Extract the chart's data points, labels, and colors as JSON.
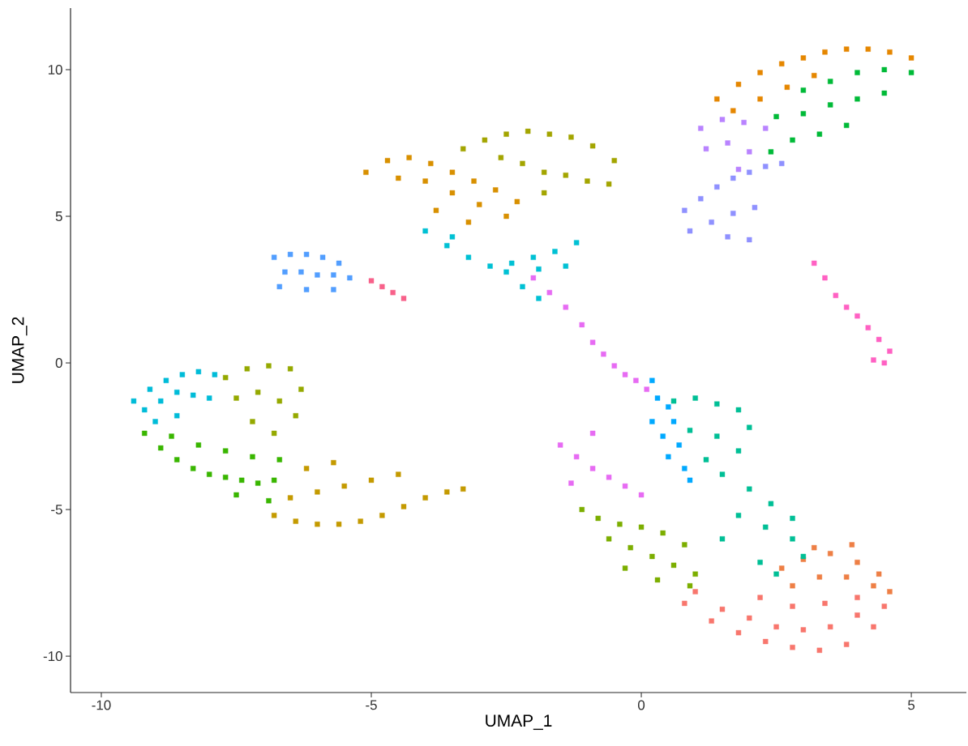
{
  "chart_data": {
    "type": "scatter",
    "xlabel": "UMAP_1",
    "ylabel": "UMAP_2",
    "xlim": [
      -10.57,
      6.02
    ],
    "ylim": [
      -11.24,
      12.1
    ],
    "xticks": [
      -10,
      -5,
      0,
      5
    ],
    "yticks": [
      -10,
      -5,
      0,
      5,
      10
    ],
    "grid": false,
    "marker": "square",
    "series": [
      {
        "color": "#f8766d",
        "x": [
          0.8,
          1.3,
          1.8,
          2.3,
          2.8,
          3.3,
          3.8,
          4.3,
          1.5,
          2.0,
          2.5,
          3.0,
          3.5,
          4.0,
          2.2,
          2.8,
          3.4,
          4.0,
          1.0,
          4.5
        ],
        "values": [
          -8.2,
          -8.8,
          -9.2,
          -9.5,
          -9.7,
          -9.8,
          -9.6,
          -9.0,
          -8.4,
          -8.7,
          -9.0,
          -9.1,
          -9.0,
          -8.6,
          -8.0,
          -8.3,
          -8.2,
          -8.0,
          -7.8,
          -8.3
        ]
      },
      {
        "color": "#ee7f45",
        "x": [
          2.6,
          3.0,
          3.5,
          4.0,
          4.4,
          4.6,
          2.8,
          3.3,
          3.8,
          4.3,
          3.2,
          3.9
        ],
        "values": [
          -7.0,
          -6.7,
          -6.5,
          -6.8,
          -7.2,
          -7.8,
          -7.6,
          -7.3,
          -7.3,
          -7.6,
          -6.3,
          -6.2
        ]
      },
      {
        "color": "#00bf96",
        "x": [
          0.6,
          1.0,
          1.4,
          1.8,
          2.0,
          0.9,
          1.4,
          1.8,
          1.5,
          2.0,
          2.4,
          2.8,
          1.8,
          2.3,
          2.8,
          1.2,
          2.2,
          3.0,
          1.5,
          2.5
        ],
        "values": [
          -1.3,
          -1.2,
          -1.4,
          -1.6,
          -2.2,
          -2.3,
          -2.5,
          -3.0,
          -3.8,
          -4.3,
          -4.8,
          -5.3,
          -5.2,
          -5.6,
          -6.0,
          -3.3,
          -6.8,
          -6.6,
          -6.0,
          -7.2
        ]
      },
      {
        "color": "#00a9ff",
        "x": [
          0.2,
          0.3,
          0.5,
          0.6,
          0.4,
          0.7,
          0.5,
          0.8,
          0.2,
          0.9
        ],
        "values": [
          -0.6,
          -1.2,
          -1.5,
          -2.0,
          -2.5,
          -2.8,
          -3.2,
          -3.6,
          -2.0,
          -4.0
        ]
      },
      {
        "color": "#e76bf3",
        "x": [
          -2.0,
          -1.7,
          -1.4,
          -1.1,
          -0.9,
          -0.7,
          -0.5,
          -0.3,
          -0.1,
          0.1,
          -1.5,
          -1.2,
          -0.9,
          -0.6,
          -0.3,
          0.0,
          -1.3,
          -0.9
        ],
        "values": [
          2.9,
          2.4,
          1.9,
          1.3,
          0.7,
          0.3,
          -0.1,
          -0.4,
          -0.6,
          -0.9,
          -2.8,
          -3.2,
          -3.6,
          -3.9,
          -4.2,
          -4.5,
          -4.1,
          -2.4
        ]
      },
      {
        "color": "#7cae00",
        "x": [
          -1.1,
          -0.8,
          -0.4,
          0.0,
          0.4,
          0.8,
          -0.6,
          -0.2,
          0.2,
          0.6,
          1.0,
          -0.3,
          0.3,
          0.9
        ],
        "values": [
          -5.0,
          -5.3,
          -5.5,
          -5.6,
          -5.8,
          -6.2,
          -6.0,
          -6.3,
          -6.6,
          -6.9,
          -7.2,
          -7.0,
          -7.4,
          -7.6
        ]
      },
      {
        "color": "#00c1d4",
        "x": [
          -4.0,
          -3.6,
          -3.2,
          -2.8,
          -2.4,
          -2.0,
          -1.6,
          -1.2,
          -3.5,
          -2.5,
          -1.9,
          -1.4,
          -2.2,
          -1.9
        ],
        "values": [
          4.5,
          4.0,
          3.6,
          3.3,
          3.4,
          3.6,
          3.8,
          4.1,
          4.3,
          3.1,
          3.2,
          3.3,
          2.6,
          2.2
        ]
      },
      {
        "color": "#d89000",
        "x": [
          -5.1,
          -4.7,
          -4.3,
          -3.9,
          -3.5,
          -3.1,
          -2.7,
          -2.3,
          -4.5,
          -4.0,
          -3.5,
          -3.0,
          -2.5,
          -3.8,
          -3.2
        ],
        "values": [
          6.5,
          6.9,
          7.0,
          6.8,
          6.5,
          6.2,
          5.9,
          5.5,
          6.3,
          6.2,
          5.8,
          5.4,
          5.0,
          5.2,
          4.8
        ]
      },
      {
        "color": "#a3a500",
        "x": [
          -3.3,
          -2.9,
          -2.5,
          -2.1,
          -1.7,
          -1.3,
          -0.9,
          -0.5,
          -2.6,
          -2.2,
          -1.8,
          -1.4,
          -1.0,
          -0.6,
          -1.8
        ],
        "values": [
          7.3,
          7.6,
          7.8,
          7.9,
          7.8,
          7.7,
          7.4,
          6.9,
          7.0,
          6.8,
          6.5,
          6.4,
          6.2,
          6.1,
          5.8
        ]
      },
      {
        "color": "#529eff",
        "x": [
          -6.8,
          -6.5,
          -6.2,
          -5.9,
          -5.6,
          -6.6,
          -6.3,
          -6.0,
          -5.7,
          -5.4,
          -6.7,
          -6.2,
          -5.7
        ],
        "values": [
          3.6,
          3.7,
          3.7,
          3.6,
          3.4,
          3.1,
          3.1,
          3.0,
          3.0,
          2.9,
          2.6,
          2.5,
          2.5
        ]
      },
      {
        "color": "#f8618a",
        "x": [
          -5.0,
          -4.8,
          -4.6,
          -4.4
        ],
        "values": [
          2.8,
          2.6,
          2.4,
          2.2
        ]
      },
      {
        "color": "#00bcd8",
        "x": [
          -9.4,
          -9.1,
          -8.8,
          -8.5,
          -8.2,
          -7.9,
          -9.2,
          -8.9,
          -8.6,
          -8.3,
          -8.0,
          -9.0,
          -8.6
        ],
        "values": [
          -1.3,
          -0.9,
          -0.6,
          -0.4,
          -0.3,
          -0.4,
          -1.6,
          -1.3,
          -1.0,
          -1.1,
          -1.2,
          -2.0,
          -1.8
        ]
      },
      {
        "color": "#39b600",
        "x": [
          -9.2,
          -8.9,
          -8.6,
          -8.3,
          -8.0,
          -7.7,
          -7.4,
          -7.1,
          -6.8,
          -8.7,
          -8.2,
          -7.7,
          -7.2,
          -6.7,
          -7.5,
          -6.9
        ],
        "values": [
          -2.4,
          -2.9,
          -3.3,
          -3.6,
          -3.8,
          -3.9,
          -4.0,
          -4.1,
          -4.0,
          -2.5,
          -2.8,
          -3.0,
          -3.2,
          -3.3,
          -4.5,
          -4.7
        ]
      },
      {
        "color": "#95a900",
        "x": [
          -7.7,
          -7.3,
          -6.9,
          -6.5,
          -6.3,
          -7.5,
          -7.1,
          -6.7,
          -6.4,
          -7.2,
          -6.8
        ],
        "values": [
          -0.5,
          -0.2,
          -0.1,
          -0.2,
          -0.9,
          -1.2,
          -1.0,
          -1.3,
          -1.8,
          -2.0,
          -2.4
        ]
      },
      {
        "color": "#c49a00",
        "x": [
          -6.8,
          -6.4,
          -6.0,
          -5.6,
          -5.2,
          -4.8,
          -4.4,
          -4.0,
          -3.6,
          -6.5,
          -6.0,
          -5.5,
          -5.0,
          -4.5,
          -3.3,
          -6.2,
          -5.7
        ],
        "values": [
          -5.2,
          -5.4,
          -5.5,
          -5.5,
          -5.4,
          -5.2,
          -4.9,
          -4.6,
          -4.4,
          -4.6,
          -4.4,
          -4.2,
          -4.0,
          -3.8,
          -4.3,
          -3.6,
          -3.4
        ]
      },
      {
        "color": "#e58700",
        "x": [
          1.4,
          1.8,
          2.2,
          2.6,
          3.0,
          3.4,
          3.8,
          4.2,
          4.6,
          5.0,
          1.7,
          2.2,
          2.7,
          3.2
        ],
        "values": [
          9.0,
          9.5,
          9.9,
          10.2,
          10.4,
          10.6,
          10.7,
          10.7,
          10.6,
          10.4,
          8.6,
          9.0,
          9.4,
          9.8
        ]
      },
      {
        "color": "#00ba38",
        "x": [
          3.0,
          3.5,
          4.0,
          4.5,
          5.0,
          2.5,
          3.0,
          3.5,
          4.0,
          4.5,
          2.8,
          3.3,
          3.8,
          2.4
        ],
        "values": [
          9.3,
          9.6,
          9.9,
          10.0,
          9.9,
          8.4,
          8.5,
          8.8,
          9.0,
          9.2,
          7.6,
          7.8,
          8.1,
          7.2
        ]
      },
      {
        "color": "#b983ff",
        "x": [
          1.1,
          1.5,
          1.9,
          2.3,
          1.2,
          1.6,
          2.0,
          1.8
        ],
        "values": [
          8.0,
          8.3,
          8.2,
          8.0,
          7.3,
          7.5,
          7.2,
          6.6
        ]
      },
      {
        "color": "#8f91ff",
        "x": [
          0.8,
          1.1,
          1.4,
          1.7,
          2.0,
          2.3,
          2.6,
          0.9,
          1.3,
          1.7,
          2.1,
          1.6,
          2.0
        ],
        "values": [
          5.2,
          5.6,
          6.0,
          6.3,
          6.5,
          6.7,
          6.8,
          4.5,
          4.8,
          5.1,
          5.3,
          4.3,
          4.2
        ]
      },
      {
        "color": "#ff61c3",
        "x": [
          3.2,
          3.4,
          3.6,
          3.8,
          4.0,
          4.2,
          4.4,
          4.6,
          4.3,
          4.5
        ],
        "values": [
          3.4,
          2.9,
          2.3,
          1.9,
          1.6,
          1.2,
          0.8,
          0.4,
          0.1,
          0.0
        ]
      }
    ]
  }
}
